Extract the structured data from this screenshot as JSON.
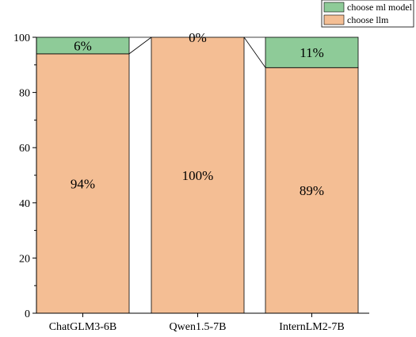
{
  "chart_data": {
    "type": "bar",
    "stacked": true,
    "categories": [
      "ChatGLM3-6B",
      "Qwen1.5-7B",
      "InternLM2-7B"
    ],
    "series": [
      {
        "name": "choose llm",
        "values": [
          94,
          100,
          89
        ],
        "labels": [
          "94%",
          "100%",
          "89%"
        ],
        "color": "#f4be94"
      },
      {
        "name": "choose ml model",
        "values": [
          6,
          0,
          11
        ],
        "labels": [
          "6%",
          "0%",
          "11%"
        ],
        "color": "#8ecb98"
      }
    ],
    "ylim": [
      0,
      100
    ],
    "yticks": [
      0,
      20,
      40,
      60,
      80,
      100
    ],
    "ytick_labels": [
      "0",
      "20",
      "40",
      "60",
      "80",
      "100"
    ],
    "legend_position": "top-right",
    "connector_lines": true,
    "grid": false,
    "title": "",
    "xlabel": "",
    "ylabel": ""
  }
}
